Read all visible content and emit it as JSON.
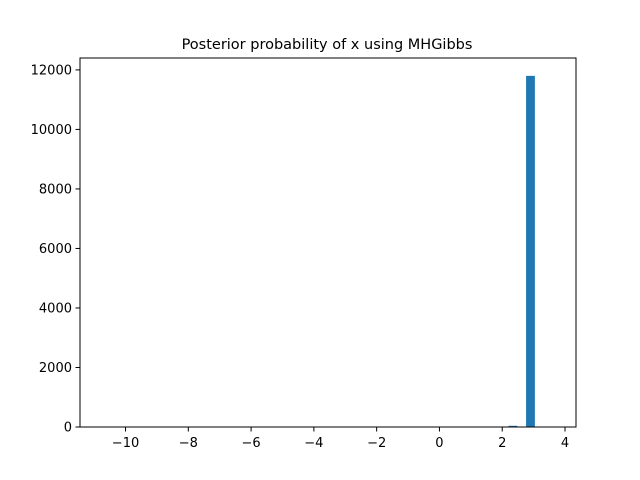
{
  "chart_data": {
    "type": "bar",
    "title": "Posterior probability of x using MHGibbs",
    "xlabel": "",
    "ylabel": "",
    "xlim": [
      -11.45,
      4.35
    ],
    "ylim": [
      0,
      12400
    ],
    "x_ticks": [
      -10,
      -8,
      -6,
      -4,
      -2,
      0,
      2,
      4
    ],
    "x_tick_labels": [
      "−10",
      "−8",
      "−6",
      "−4",
      "−2",
      "0",
      "2",
      "4"
    ],
    "y_ticks": [
      0,
      2000,
      4000,
      6000,
      8000,
      10000,
      12000
    ],
    "y_tick_labels": [
      "0",
      "2000",
      "4000",
      "6000",
      "8000",
      "10000",
      "12000"
    ],
    "grid": false,
    "bars": [
      {
        "x_start": 2.2,
        "x_end": 2.48,
        "value": 40
      },
      {
        "x_start": 2.76,
        "x_end": 3.04,
        "value": 11800
      }
    ],
    "bar_color": "#1f77b4"
  }
}
